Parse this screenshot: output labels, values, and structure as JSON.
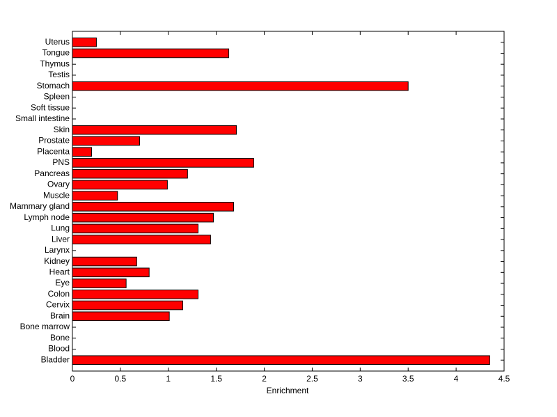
{
  "chart_data": {
    "type": "barh",
    "xlabel": "Enrichment",
    "categories": [
      "Bladder",
      "Blood",
      "Bone",
      "Bone marrow",
      "Brain",
      "Cervix",
      "Colon",
      "Eye",
      "Heart",
      "Kidney",
      "Larynx",
      "Liver",
      "Lung",
      "Lymph node",
      "Mammary gland",
      "Muscle",
      "Ovary",
      "Pancreas",
      "PNS",
      "Placenta",
      "Prostate",
      "Skin",
      "Small intestine",
      "Soft tissue",
      "Spleen",
      "Stomach",
      "Testis",
      "Thymus",
      "Tongue",
      "Uterus"
    ],
    "values": [
      4.35,
      0,
      0,
      0,
      1.01,
      1.15,
      1.31,
      0.56,
      0.8,
      0.67,
      0,
      1.44,
      1.31,
      1.47,
      1.68,
      0.47,
      0.99,
      1.2,
      1.89,
      0.2,
      0.7,
      1.71,
      0,
      0,
      0,
      3.5,
      0,
      0,
      1.63,
      0.25
    ],
    "color": "#ff0000",
    "xlim": [
      0,
      4.5
    ],
    "xticks": [
      0,
      0.5,
      1,
      1.5,
      2,
      2.5,
      3,
      3.5,
      4,
      4.5
    ]
  }
}
